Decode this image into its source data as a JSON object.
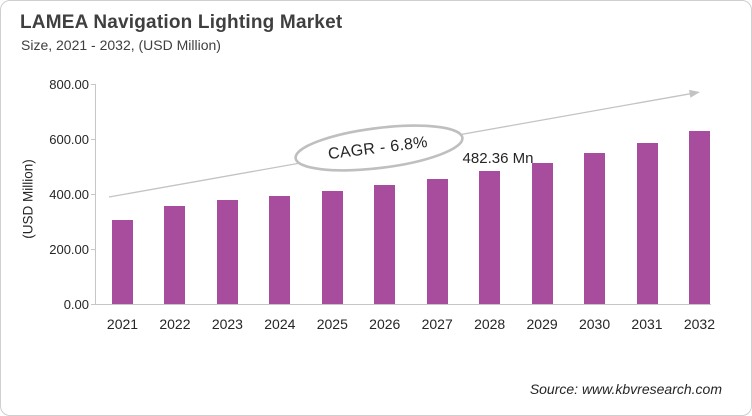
{
  "header": {
    "title": "LAMEA Navigation Lighting Market",
    "subtitle": "Size, 2021 - 2032, (USD Million)"
  },
  "chart_data": {
    "type": "bar",
    "title": "LAMEA Navigation Lighting Market Size, 2021 - 2032, (USD Million)",
    "categories": [
      "2021",
      "2022",
      "2023",
      "2024",
      "2025",
      "2026",
      "2027",
      "2028",
      "2029",
      "2030",
      "2031",
      "2032"
    ],
    "values": [
      304,
      356,
      378,
      394,
      411,
      432,
      453,
      482.36,
      514,
      548,
      587,
      629
    ],
    "xlabel": "",
    "ylabel": "(USD Million)",
    "ylim": [
      0,
      800
    ],
    "yticks": [
      0,
      200,
      400,
      600,
      800
    ],
    "ytick_labels": [
      "0.00",
      "200.00",
      "400.00",
      "600.00",
      "800.00"
    ],
    "grid": false,
    "legend": false,
    "annotations": [
      {
        "type": "ellipse-label",
        "text": "CAGR - 6.8%"
      },
      {
        "type": "point-label",
        "text": "482.36 Mn",
        "category": "2028",
        "value": 482.36
      },
      {
        "type": "trend-arrow",
        "direction": "up-right"
      }
    ]
  },
  "footer": {
    "source": "Source: www.kbvresearch.com"
  },
  "colors": {
    "bar": "#A84C9D",
    "axis": "#C6C6C6",
    "arrow": "#C3C3C3",
    "ellipse_stroke": "#BFBFBF",
    "text_dark": "#262626",
    "title_text": "#3F3F3F"
  }
}
